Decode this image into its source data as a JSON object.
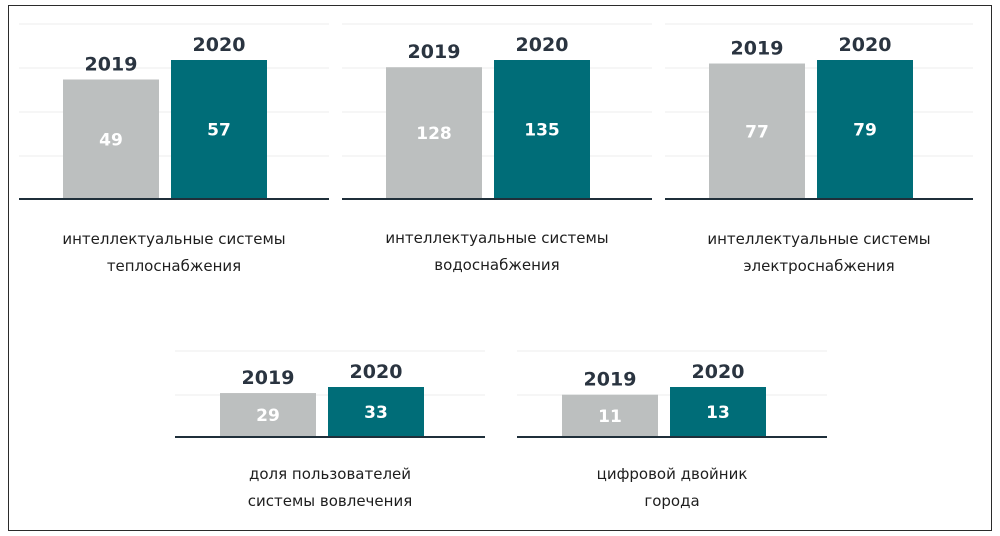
{
  "colors": {
    "y2019": "#bcbfbf",
    "y2020": "#006d78",
    "year_label": "#2a3440",
    "value_label": "#ffffff"
  },
  "chart_data": [
    {
      "type": "bar",
      "categories": [
        "2019",
        "2020"
      ],
      "values": [
        49,
        57
      ],
      "caption": [
        "интеллектуальные системы",
        "теплоснабжения"
      ]
    },
    {
      "type": "bar",
      "categories": [
        "2019",
        "2020"
      ],
      "values": [
        128,
        135
      ],
      "caption": [
        "интеллектуальные системы",
        "водоснабжения"
      ]
    },
    {
      "type": "bar",
      "categories": [
        "2019",
        "2020"
      ],
      "values": [
        77,
        79
      ],
      "caption": [
        "интеллектуальные системы",
        "электроснабжения"
      ]
    },
    {
      "type": "bar",
      "categories": [
        "2019",
        "2020"
      ],
      "values": [
        29,
        33
      ],
      "caption": [
        "доля пользователей",
        "системы вовлечения"
      ]
    },
    {
      "type": "bar",
      "categories": [
        "2019",
        "2020"
      ],
      "values": [
        11,
        13
      ],
      "caption": [
        "цифровой двойник",
        "города"
      ]
    }
  ]
}
